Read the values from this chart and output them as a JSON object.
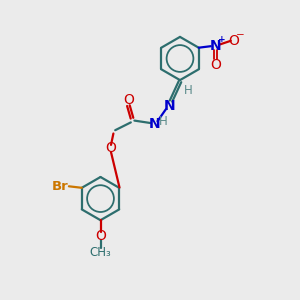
{
  "bg_color": "#ebebeb",
  "bond_color": "#2d6e6e",
  "bond_lw": 1.6,
  "atom_colors": {
    "O": "#cc0000",
    "N": "#0000cc",
    "Br": "#cc7700",
    "C": "#2d6e6e",
    "H": "#5a8a8a"
  },
  "font_size": 8.5,
  "ring_r": 0.72
}
